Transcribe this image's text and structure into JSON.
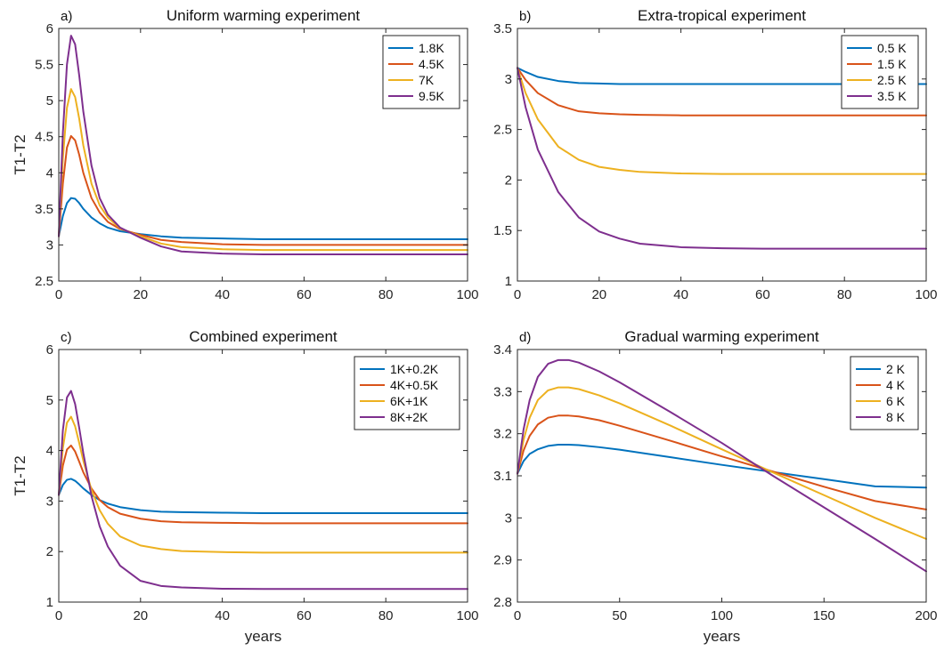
{
  "colors": {
    "blue": "#0072BD",
    "orange": "#D95319",
    "yellow": "#EDB120",
    "purple": "#7E2F8E"
  },
  "chart_data": [
    {
      "type": "line",
      "panel_label": "a)",
      "title": "Uniform warming experiment",
      "xlabel": "",
      "ylabel": "T1-T2",
      "xlim": [
        0,
        100
      ],
      "ylim": [
        2.5,
        6
      ],
      "xticks": [
        "0",
        "20",
        "40",
        "60",
        "80",
        "100"
      ],
      "yticks": [
        "2.5",
        "3",
        "3.5",
        "4",
        "4.5",
        "5",
        "5.5",
        "6"
      ],
      "legend_position": "top-right",
      "series": [
        {
          "name": "1.8K",
          "color": "#0072BD",
          "x": [
            0,
            1,
            2,
            3,
            4,
            5,
            6,
            8,
            10,
            12,
            15,
            20,
            25,
            30,
            40,
            50,
            60,
            70,
            80,
            90,
            100
          ],
          "y": [
            3.12,
            3.4,
            3.58,
            3.65,
            3.64,
            3.58,
            3.5,
            3.38,
            3.3,
            3.24,
            3.19,
            3.15,
            3.12,
            3.1,
            3.09,
            3.08,
            3.08,
            3.08,
            3.08,
            3.08,
            3.08
          ]
        },
        {
          "name": "4.5K",
          "color": "#D95319",
          "x": [
            0,
            1,
            2,
            3,
            4,
            5,
            6,
            8,
            10,
            12,
            15,
            20,
            25,
            30,
            40,
            50,
            60,
            70,
            80,
            90,
            100
          ],
          "y": [
            3.12,
            3.85,
            4.35,
            4.51,
            4.45,
            4.25,
            4.0,
            3.65,
            3.45,
            3.32,
            3.22,
            3.14,
            3.07,
            3.04,
            3.01,
            3.0,
            3.0,
            3.0,
            3.0,
            3.0,
            3.0
          ]
        },
        {
          "name": "7K",
          "color": "#EDB120",
          "x": [
            0,
            1,
            2,
            3,
            4,
            5,
            6,
            8,
            10,
            12,
            15,
            20,
            25,
            30,
            40,
            50,
            60,
            70,
            80,
            90,
            100
          ],
          "y": [
            3.12,
            4.2,
            4.9,
            5.16,
            5.05,
            4.75,
            4.38,
            3.85,
            3.55,
            3.38,
            3.23,
            3.12,
            3.02,
            2.97,
            2.94,
            2.93,
            2.93,
            2.93,
            2.93,
            2.93,
            2.93
          ]
        },
        {
          "name": "9.5K",
          "color": "#7E2F8E",
          "x": [
            0,
            1,
            2,
            3,
            4,
            5,
            6,
            8,
            10,
            12,
            15,
            20,
            25,
            30,
            40,
            50,
            60,
            70,
            80,
            90,
            100
          ],
          "y": [
            3.12,
            4.55,
            5.5,
            5.9,
            5.78,
            5.35,
            4.85,
            4.1,
            3.65,
            3.42,
            3.24,
            3.1,
            2.98,
            2.91,
            2.88,
            2.87,
            2.87,
            2.87,
            2.87,
            2.87,
            2.87
          ]
        }
      ]
    },
    {
      "type": "line",
      "panel_label": "b)",
      "title": "Extra-tropical experiment",
      "xlabel": "",
      "ylabel": "",
      "xlim": [
        0,
        100
      ],
      "ylim": [
        1,
        3.5
      ],
      "xticks": [
        "0",
        "20",
        "40",
        "60",
        "80",
        "100"
      ],
      "yticks": [
        "1",
        "1.5",
        "2",
        "2.5",
        "3",
        "3.5"
      ],
      "legend_position": "top-right",
      "series": [
        {
          "name": "0.5 K",
          "color": "#0072BD",
          "x": [
            0,
            2,
            5,
            10,
            15,
            20,
            25,
            30,
            40,
            50,
            60,
            70,
            80,
            90,
            100
          ],
          "y": [
            3.11,
            3.07,
            3.02,
            2.98,
            2.96,
            2.955,
            2.95,
            2.95,
            2.95,
            2.95,
            2.95,
            2.95,
            2.95,
            2.95,
            2.95
          ]
        },
        {
          "name": "1.5 K",
          "color": "#D95319",
          "x": [
            0,
            2,
            5,
            10,
            15,
            20,
            25,
            30,
            40,
            50,
            60,
            70,
            80,
            90,
            100
          ],
          "y": [
            3.11,
            2.99,
            2.86,
            2.74,
            2.68,
            2.66,
            2.65,
            2.645,
            2.64,
            2.64,
            2.64,
            2.64,
            2.64,
            2.64,
            2.64
          ]
        },
        {
          "name": "2.5 K",
          "color": "#EDB120",
          "x": [
            0,
            2,
            5,
            10,
            15,
            20,
            25,
            30,
            40,
            50,
            60,
            70,
            80,
            90,
            100
          ],
          "y": [
            3.11,
            2.86,
            2.6,
            2.33,
            2.2,
            2.13,
            2.1,
            2.08,
            2.065,
            2.06,
            2.06,
            2.06,
            2.06,
            2.06,
            2.06
          ]
        },
        {
          "name": "3.5 K",
          "color": "#7E2F8E",
          "x": [
            0,
            2,
            5,
            10,
            15,
            20,
            25,
            30,
            40,
            50,
            60,
            70,
            80,
            90,
            100
          ],
          "y": [
            3.11,
            2.72,
            2.3,
            1.88,
            1.63,
            1.49,
            1.42,
            1.37,
            1.335,
            1.325,
            1.32,
            1.32,
            1.32,
            1.32,
            1.32
          ]
        }
      ]
    },
    {
      "type": "line",
      "panel_label": "c)",
      "title": "Combined experiment",
      "xlabel": "years",
      "ylabel": "T1-T2",
      "xlim": [
        0,
        100
      ],
      "ylim": [
        1,
        6
      ],
      "xticks": [
        "0",
        "20",
        "40",
        "60",
        "80",
        "100"
      ],
      "yticks": [
        "1",
        "2",
        "3",
        "4",
        "5",
        "6"
      ],
      "legend_position": "top-right",
      "series": [
        {
          "name": "1K+0.2K",
          "color": "#0072BD",
          "x": [
            0,
            1,
            2,
            3,
            4,
            5,
            6,
            8,
            10,
            12,
            15,
            20,
            25,
            30,
            40,
            50,
            60,
            70,
            80,
            90,
            100
          ],
          "y": [
            3.12,
            3.32,
            3.42,
            3.44,
            3.4,
            3.33,
            3.25,
            3.12,
            3.02,
            2.95,
            2.88,
            2.82,
            2.79,
            2.78,
            2.77,
            2.76,
            2.76,
            2.76,
            2.76,
            2.76,
            2.76
          ]
        },
        {
          "name": "4K+0.5K",
          "color": "#D95319",
          "x": [
            0,
            1,
            2,
            3,
            4,
            5,
            6,
            8,
            10,
            12,
            15,
            20,
            25,
            30,
            40,
            50,
            60,
            70,
            80,
            90,
            100
          ],
          "y": [
            3.12,
            3.7,
            4.02,
            4.1,
            3.98,
            3.78,
            3.57,
            3.25,
            3.02,
            2.88,
            2.75,
            2.65,
            2.6,
            2.58,
            2.57,
            2.56,
            2.56,
            2.56,
            2.56,
            2.56,
            2.56
          ]
        },
        {
          "name": "6K+1K",
          "color": "#EDB120",
          "x": [
            0,
            1,
            2,
            3,
            4,
            5,
            6,
            8,
            10,
            12,
            15,
            20,
            25,
            30,
            40,
            50,
            60,
            70,
            80,
            90,
            100
          ],
          "y": [
            3.12,
            4.05,
            4.55,
            4.67,
            4.48,
            4.15,
            3.8,
            3.22,
            2.82,
            2.55,
            2.3,
            2.12,
            2.05,
            2.01,
            1.99,
            1.98,
            1.98,
            1.98,
            1.98,
            1.98,
            1.98
          ]
        },
        {
          "name": "8K+2K",
          "color": "#7E2F8E",
          "x": [
            0,
            1,
            2,
            3,
            4,
            5,
            6,
            8,
            10,
            12,
            15,
            20,
            25,
            30,
            40,
            50,
            60,
            70,
            80,
            90,
            100
          ],
          "y": [
            3.12,
            4.4,
            5.05,
            5.18,
            4.92,
            4.45,
            3.95,
            3.1,
            2.5,
            2.1,
            1.72,
            1.42,
            1.32,
            1.29,
            1.265,
            1.26,
            1.26,
            1.26,
            1.26,
            1.26,
            1.26
          ]
        }
      ]
    },
    {
      "type": "line",
      "panel_label": "d)",
      "title": "Gradual warming experiment",
      "xlabel": "years",
      "ylabel": "",
      "xlim": [
        0,
        200
      ],
      "ylim": [
        2.8,
        3.4
      ],
      "xticks": [
        "0",
        "50",
        "100",
        "150",
        "200"
      ],
      "yticks": [
        "2.8",
        "2.9",
        "3",
        "3.1",
        "3.2",
        "3.3",
        "3.4"
      ],
      "legend_position": "top-right",
      "series": [
        {
          "name": "2 K",
          "color": "#0072BD",
          "x": [
            0,
            3,
            6,
            10,
            15,
            20,
            25,
            30,
            40,
            50,
            75,
            100,
            125,
            150,
            175,
            200
          ],
          "y": [
            3.105,
            3.135,
            3.152,
            3.163,
            3.171,
            3.174,
            3.174,
            3.173,
            3.168,
            3.162,
            3.144,
            3.126,
            3.109,
            3.092,
            3.075,
            3.072
          ]
        },
        {
          "name": "4 K",
          "color": "#D95319",
          "x": [
            0,
            3,
            6,
            10,
            15,
            20,
            25,
            30,
            40,
            50,
            75,
            100,
            125,
            150,
            175,
            200
          ],
          "y": [
            3.105,
            3.16,
            3.195,
            3.222,
            3.238,
            3.243,
            3.243,
            3.241,
            3.232,
            3.219,
            3.183,
            3.146,
            3.11,
            3.074,
            3.04,
            3.02
          ]
        },
        {
          "name": "6 K",
          "color": "#EDB120",
          "x": [
            0,
            3,
            6,
            10,
            15,
            20,
            25,
            30,
            40,
            50,
            75,
            100,
            125,
            150,
            175,
            200
          ],
          "y": [
            3.105,
            3.185,
            3.238,
            3.28,
            3.303,
            3.31,
            3.31,
            3.306,
            3.291,
            3.272,
            3.219,
            3.163,
            3.108,
            3.054,
            3.0,
            2.95
          ]
        },
        {
          "name": "8 K",
          "color": "#7E2F8E",
          "x": [
            0,
            3,
            6,
            10,
            15,
            20,
            25,
            30,
            40,
            50,
            75,
            100,
            125,
            150,
            175,
            200
          ],
          "y": [
            3.105,
            3.21,
            3.28,
            3.335,
            3.366,
            3.375,
            3.375,
            3.369,
            3.348,
            3.322,
            3.251,
            3.178,
            3.1,
            3.025,
            2.95,
            2.873
          ]
        }
      ]
    }
  ]
}
